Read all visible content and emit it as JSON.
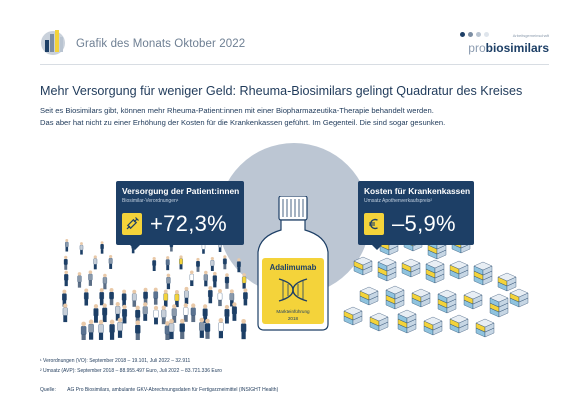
{
  "header": {
    "title": "Grafik des Monats Oktober 2022",
    "brand_small": "Arbeitsgemeinschaft",
    "brand_pro": "pro",
    "brand_bio": "biosimilars",
    "brand_dot_colors": [
      "#1d3f66",
      "#7d8ea3",
      "#b9c4d1",
      "#dfe5ec"
    ]
  },
  "headline": "Mehr Versorgung für weniger Geld: Rheuma-Biosimilars gelingt Quadratur des Kreises",
  "intro": {
    "line1": "Seit es Biosimilars gibt, können mehr Rheuma-Patient:innen mit einer Biopharmazeutika-Therapie behandelt werden.",
    "line2": "Das aber hat nicht zu einer Erhöhung der Kosten für die Krankenkassen geführt. Im Gegenteil. Die sind sogar gesunken."
  },
  "stats": {
    "left": {
      "title": "Versorgung der Patient:innen",
      "subtitle": "Biosimilar-Verordnungen¹",
      "value": "+72,3%",
      "icon": "syringe-icon"
    },
    "right": {
      "title": "Kosten für Krankenkassen",
      "subtitle": "Umsatz Apothenverkaufspreis²",
      "value": "–5,9%",
      "icon": "euro-icon"
    }
  },
  "bottle": {
    "name": "Adalimumab",
    "launch_label": "Markteinführung",
    "launch_year": "2018",
    "icon": "dna-icon"
  },
  "footnotes": {
    "fn1": "¹ Verordnungen (VO): September 2018 – 19.101, Juli 2022 – 32.911",
    "fn2": "² Umsatz (AVP): September 2018 – 88.955.497 Euro, Juli 2022 – 83.721.336 Euro"
  },
  "source": {
    "label": "Quelle:",
    "text": "AG Pro Biosimilars, ambulante GKV-Abrechnungsdaten für Fertigarzneimittel (INSIGHT Health)"
  },
  "colors": {
    "navy": "#1d3f66",
    "yellow": "#f4d33a",
    "circle": "#bcc6d3",
    "box_blue": "#8fc3de"
  }
}
